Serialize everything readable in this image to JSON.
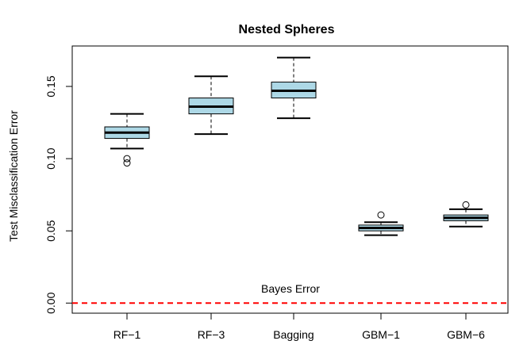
{
  "chart_data": {
    "type": "boxplot",
    "title": "Nested Spheres",
    "xlabel": "",
    "ylabel": "Test Misclassification Error",
    "ylim": [
      -0.007,
      0.178
    ],
    "yticks": [
      0.0,
      0.05,
      0.1,
      0.15
    ],
    "ytick_labels": [
      "0.00",
      "0.05",
      "0.10",
      "0.15"
    ],
    "categories": [
      "RF−1",
      "RF−3",
      "Bagging",
      "GBM−1",
      "GBM−6"
    ],
    "boxes": [
      {
        "name": "RF−1",
        "min": 0.107,
        "q1": 0.114,
        "median": 0.118,
        "q3": 0.122,
        "max": 0.131,
        "outliers": [
          0.1,
          0.097
        ]
      },
      {
        "name": "RF−3",
        "min": 0.117,
        "q1": 0.131,
        "median": 0.136,
        "q3": 0.142,
        "max": 0.157,
        "outliers": []
      },
      {
        "name": "Bagging",
        "min": 0.128,
        "q1": 0.142,
        "median": 0.147,
        "q3": 0.153,
        "max": 0.17,
        "outliers": []
      },
      {
        "name": "GBM−1",
        "min": 0.047,
        "q1": 0.05,
        "median": 0.052,
        "q3": 0.054,
        "max": 0.056,
        "outliers": [
          0.061
        ]
      },
      {
        "name": "GBM−6",
        "min": 0.053,
        "q1": 0.057,
        "median": 0.059,
        "q3": 0.061,
        "max": 0.065,
        "outliers": [
          0.068
        ]
      }
    ],
    "reference_line": {
      "value": 0.0,
      "label": "Bayes Error",
      "color": "#ff0000",
      "style": "dashed"
    },
    "box_fill": "#add8e6",
    "grid": false
  }
}
